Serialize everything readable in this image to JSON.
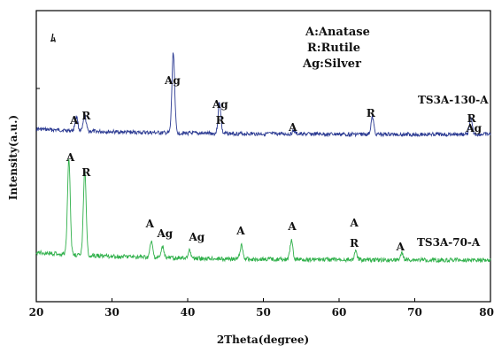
{
  "chart_data": {
    "type": "line",
    "xlabel": "2Theta(degree)",
    "ylabel": "Intensity(a.u.)",
    "xlim": [
      20,
      80
    ],
    "xticks": [
      20,
      30,
      40,
      50,
      60,
      70,
      80
    ],
    "grid": false,
    "legend_text": [
      "A:Anatase",
      "R:Rutile",
      "Ag:Silver"
    ],
    "legend_position": "top-center",
    "corner_mark": "ﾑ",
    "series": [
      {
        "name": "TS3A-130-A",
        "color": "#2b3a92",
        "baseline": 0.0,
        "peaks": [
          {
            "x": 25.3,
            "h": 0.09
          },
          {
            "x": 26.4,
            "h": 0.1
          },
          {
            "x": 38.1,
            "h": 0.52
          },
          {
            "x": 44.2,
            "h": 0.2
          },
          {
            "x": 54.0,
            "h": 0.02
          },
          {
            "x": 64.4,
            "h": 0.11
          },
          {
            "x": 77.4,
            "h": 0.1
          }
        ],
        "annotations": [
          {
            "x": 25.0,
            "text": "A"
          },
          {
            "x": 26.6,
            "text": "R"
          },
          {
            "x": 38.0,
            "text": "Ag"
          },
          {
            "x": 44.3,
            "text": "Ag"
          },
          {
            "x": 44.3,
            "text": "R"
          },
          {
            "x": 53.9,
            "text": "A"
          },
          {
            "x": 64.2,
            "text": "R"
          },
          {
            "x": 77.8,
            "text": "Ag"
          },
          {
            "x": 77.5,
            "text": "R"
          }
        ]
      },
      {
        "name": "TS3A-70-A",
        "color": "#2fb04a",
        "baseline": -1.0,
        "peaks": [
          {
            "x": 24.3,
            "h": 0.62
          },
          {
            "x": 26.4,
            "h": 0.55
          },
          {
            "x": 35.2,
            "h": 0.1
          },
          {
            "x": 36.7,
            "h": 0.07
          },
          {
            "x": 40.2,
            "h": 0.05
          },
          {
            "x": 47.1,
            "h": 0.09
          },
          {
            "x": 53.7,
            "h": 0.12
          },
          {
            "x": 62.2,
            "h": 0.05
          },
          {
            "x": 68.3,
            "h": 0.04
          }
        ],
        "annotations": [
          {
            "x": 24.5,
            "text": "A"
          },
          {
            "x": 26.6,
            "text": "R"
          },
          {
            "x": 35.0,
            "text": "A"
          },
          {
            "x": 37.0,
            "text": "Ag"
          },
          {
            "x": 41.2,
            "text": "Ag"
          },
          {
            "x": 47.0,
            "text": "A"
          },
          {
            "x": 53.8,
            "text": "A"
          },
          {
            "x": 62.0,
            "text": "A"
          },
          {
            "x": 62.0,
            "text": "R"
          },
          {
            "x": 68.1,
            "text": "A"
          }
        ]
      }
    ]
  }
}
